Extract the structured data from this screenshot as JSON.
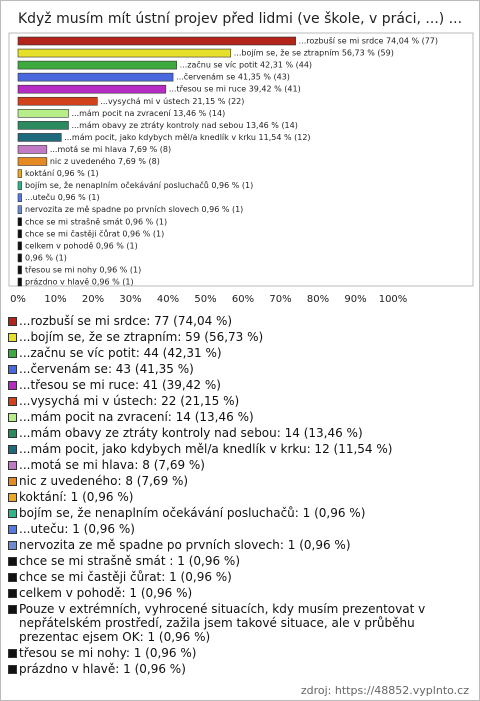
{
  "chart_data": {
    "type": "bar",
    "orientation": "horizontal",
    "title": "Když musím mít ústní projev před lidmi (ve škole, v práci, ...) ...",
    "values": [
      74.04,
      56.73,
      42.31,
      41.35,
      39.42,
      21.15,
      13.46,
      13.46,
      11.54,
      7.69,
      7.69,
      0.96,
      0.96,
      0.96,
      0.96,
      0.96,
      0.96,
      0.96,
      0.96,
      0.96,
      0.96
    ],
    "value_labels": [
      "...rozbuší se mi srdce 74,04 % (77)",
      "...bojím se, že se ztrapním 56,73 % (59)",
      "...začnu se víc potit 42,31 % (44)",
      "...červenám se 41,35 % (43)",
      "...třesou se mi ruce 39,42 % (41)",
      "...vysychá mi v ústech 21,15 % (22)",
      "...mám pocit na zvracení 13,46 % (14)",
      "...mám obavy ze ztráty kontroly nad sebou 13,46 % (14)",
      "...mám pocit, jako kdybych měl/a knedlík v krku 11,54 % (12)",
      "...motá se mi hlava 7,69 % (8)",
      "nic z uvedeného 7,69 % (8)",
      "koktání 0,96 % (1)",
      "bojím se, že nenaplním očekávání posluchačů 0,96 % (1)",
      "...uteču 0,96 % (1)",
      "nervozita ze mě spadne po prvních slovech 0,96 % (1)",
      "chce se mi strašně smát  0,96 % (1)",
      "chce se mi častěji čůrat 0,96 % (1)",
      "celkem v pohodě 0,96 % (1)",
      "0,96 % (1)",
      "třesou se mi nohy 0,96 % (1)",
      "prázdno v hlavě 0,96 % (1)"
    ],
    "legend_labels": [
      "...rozbuší se mi srdce: 77 (74,04 %)",
      "...bojím se, že se ztrapním: 59 (56,73 %)",
      "...začnu se víc potit: 44 (42,31 %)",
      "...červenám se: 43 (41,35 %)",
      "...třesou se mi ruce: 41 (39,42 %)",
      "...vysychá mi v ústech: 22 (21,15 %)",
      "...mám pocit na zvracení: 14 (13,46 %)",
      "...mám obavy ze ztráty kontroly nad sebou: 14 (13,46 %)",
      "...mám pocit, jako kdybych měl/a knedlík v krku: 12 (11,54 %)",
      "...motá se mi hlava: 8 (7,69 %)",
      "nic z uvedeného: 8 (7,69 %)",
      "koktání: 1 (0,96 %)",
      "bojím se, že nenaplním očekávání posluchačů: 1 (0,96 %)",
      "...uteču: 1 (0,96 %)",
      "nervozita ze mě spadne po prvních slovech: 1 (0,96 %)",
      "chce se mi strašně smát : 1 (0,96 %)",
      "chce se mi častěji čůrat: 1 (0,96 %)",
      "celkem v pohodě: 1 (0,96 %)",
      "Pouze v extrémních, vyhrocené situacích, kdy musím prezentovat v nepřátelském prostředí, zažila jsem takové situace, ale v průběhu prezentac ejsem OK: 1 (0,96 %)",
      "třesou se mi nohy: 1 (0,96 %)",
      "prázdno v hlavě: 1 (0,96 %)"
    ],
    "colors": [
      "#b3251b",
      "#e6e02a",
      "#3daa3d",
      "#4a68de",
      "#b52bc4",
      "#d2401c",
      "#b6ef8a",
      "#2b8a5e",
      "#1d6a7d",
      "#c27ac4",
      "#e58a22",
      "#eba92a",
      "#2fb487",
      "#5579e0",
      "#6c8bd0",
      "#111111",
      "#111111",
      "#111111",
      "#111111",
      "#111111",
      "#111111"
    ],
    "xlim": [
      0,
      100
    ],
    "xticks": [
      {
        "value": 0,
        "label": "0%"
      },
      {
        "value": 10,
        "label": "10%"
      },
      {
        "value": 20,
        "label": "20%"
      },
      {
        "value": 30,
        "label": "30%"
      },
      {
        "value": 40,
        "label": "40%"
      },
      {
        "value": 50,
        "label": "50%"
      },
      {
        "value": 60,
        "label": "60%"
      },
      {
        "value": 70,
        "label": "70%"
      },
      {
        "value": 80,
        "label": "80%"
      },
      {
        "value": 90,
        "label": "90%"
      },
      {
        "value": 100,
        "label": "100%"
      }
    ],
    "source": "zdroj: https://48852.vyplnto.cz"
  }
}
